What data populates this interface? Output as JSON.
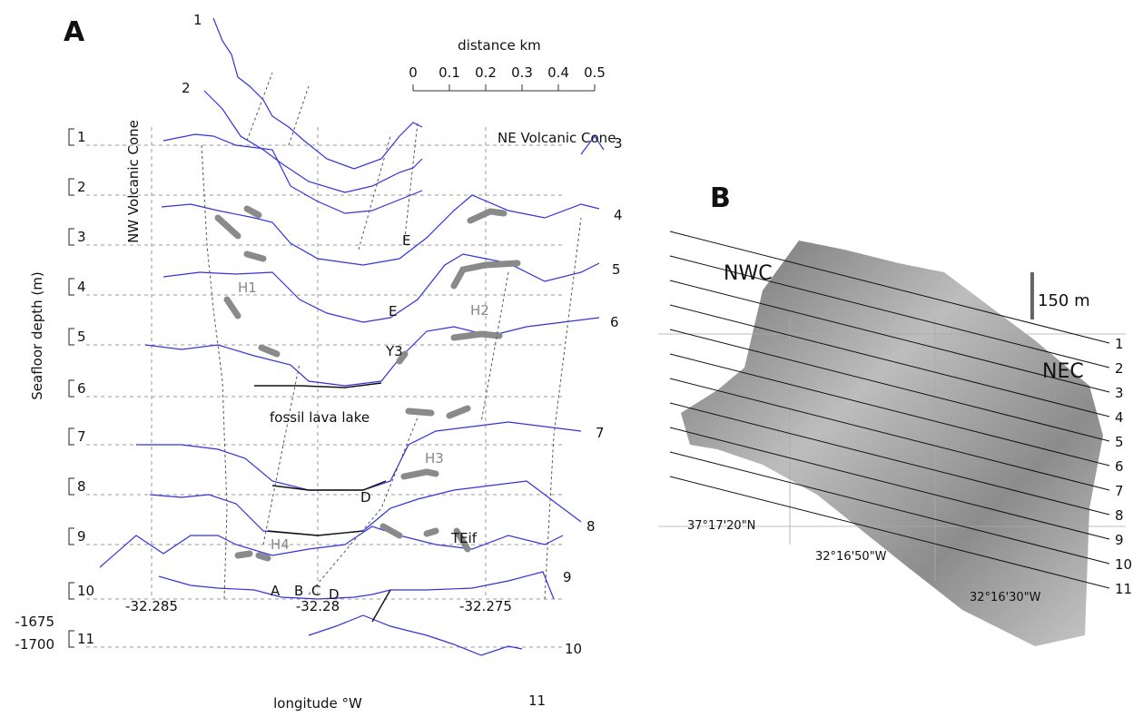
{
  "panel_a": {
    "label": "A",
    "x_axis_label": "longitude °W",
    "y_axis_label": "Seafloor depth  (m)",
    "x_ticks": [
      "-32.285",
      "-32.28",
      "-32.275"
    ],
    "depth_ticks": [
      "-1675",
      "-1700"
    ],
    "bracket_numbers": [
      "1",
      "2",
      "3",
      "4",
      "5",
      "6",
      "7",
      "8",
      "9",
      "10",
      "11"
    ],
    "profile_numbers_top": [
      "1",
      "2"
    ],
    "profile_numbers_right": [
      "3",
      "4",
      "5",
      "6",
      "7",
      "8",
      "9",
      "10",
      "11"
    ],
    "scale_title": "distance km",
    "scale_ticks": [
      "0",
      "0.1",
      "0.2",
      "0.3",
      "0.4",
      "0.5"
    ],
    "annotations": [
      "NW Volcanic Cone",
      "NE Volcanic Cone",
      "H1",
      "H2",
      "H3",
      "H4",
      "E",
      "E",
      "Y3",
      "fossil lava lake",
      "D",
      "TEif",
      "A",
      "B",
      "C",
      "D"
    ]
  },
  "panel_b": {
    "label": "B",
    "scale_label": "150 m",
    "site_labels": [
      "NWC",
      "NEC"
    ],
    "latitude_label": "37°17'20\"N",
    "longitude_labels": [
      "32°16'50\"W",
      "32°16'30\"W"
    ],
    "line_numbers": [
      "1",
      "2",
      "3",
      "4",
      "5",
      "6",
      "7",
      "8",
      "9",
      "10",
      "11"
    ]
  }
}
